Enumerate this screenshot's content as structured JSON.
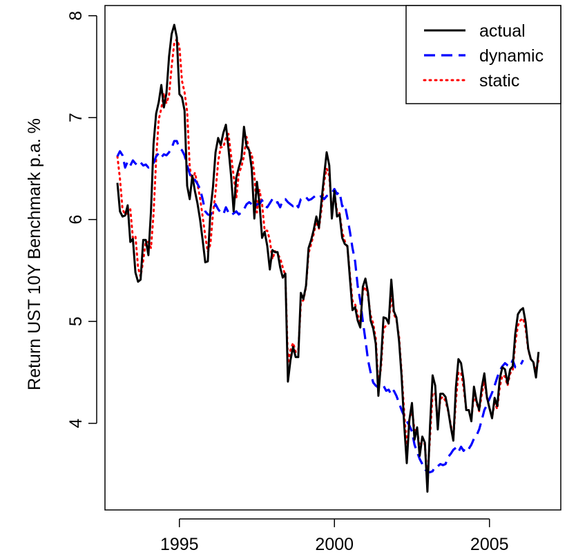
{
  "chart_data": {
    "type": "line",
    "title": "",
    "xlabel": "",
    "ylabel": "Return UST 10Y Benchmark p.a. %",
    "xlim": [
      1992.6,
      2007.3
    ],
    "ylim": [
      3.15,
      8.1
    ],
    "x_ticks": [
      1995,
      2000,
      2005
    ],
    "y_ticks": [
      4,
      5,
      6,
      7,
      8
    ],
    "grid": false,
    "legend_position": "top-right",
    "x_start": 1993.0,
    "x_step": 0.0833333,
    "series": [
      {
        "name": "actual",
        "color": "#000000",
        "dash": "solid",
        "values": [
          6.36,
          6.08,
          6.03,
          6.04,
          6.14,
          5.78,
          5.81,
          5.48,
          5.39,
          5.41,
          5.8,
          5.8,
          5.65,
          6.08,
          6.74,
          7.04,
          7.15,
          7.32,
          7.1,
          7.24,
          7.6,
          7.82,
          7.91,
          7.79,
          7.23,
          7.2,
          7.07,
          6.33,
          6.2,
          6.43,
          6.28,
          6.16,
          6.0,
          5.8,
          5.58,
          5.59,
          6.09,
          6.32,
          6.66,
          6.8,
          6.73,
          6.85,
          6.93,
          6.7,
          6.43,
          6.08,
          6.41,
          6.51,
          6.6,
          6.91,
          6.72,
          6.68,
          6.5,
          6.01,
          6.37,
          6.16,
          5.82,
          5.88,
          5.74,
          5.51,
          5.7,
          5.68,
          5.68,
          5.53,
          5.43,
          5.47,
          4.41,
          4.62,
          4.75,
          4.65,
          4.65,
          5.28,
          5.22,
          5.35,
          5.72,
          5.8,
          5.9,
          6.03,
          5.92,
          6.18,
          6.43,
          6.66,
          6.53,
          6.01,
          6.28,
          6.03,
          6.05,
          5.82,
          5.76,
          5.74,
          5.42,
          5.11,
          5.14,
          5.01,
          4.94,
          5.34,
          5.42,
          5.28,
          5.01,
          4.93,
          4.78,
          4.27,
          4.6,
          5.04,
          5.03,
          4.98,
          5.41,
          5.1,
          5.04,
          4.81,
          4.46,
          3.98,
          3.61,
          4.03,
          4.2,
          3.84,
          3.96,
          3.68,
          3.87,
          3.81,
          3.33,
          3.98,
          4.47,
          4.37,
          3.94,
          4.29,
          4.29,
          4.26,
          4.13,
          3.97,
          3.83,
          4.35,
          4.63,
          4.59,
          4.42,
          4.13,
          4.13,
          4.02,
          4.36,
          4.22,
          4.13,
          4.35,
          4.49,
          4.26,
          4.15,
          4.05,
          4.25,
          4.17,
          4.44,
          4.55,
          4.53,
          4.39,
          4.53,
          4.56,
          4.88,
          5.07,
          5.11,
          5.13,
          4.99,
          4.73,
          4.63,
          4.6,
          4.45,
          4.7
        ]
      },
      {
        "name": "dynamic",
        "color": "#0000ff",
        "dash": "dashed",
        "values": [
          6.62,
          6.67,
          6.63,
          6.51,
          6.57,
          6.53,
          6.58,
          6.55,
          6.53,
          6.56,
          6.53,
          6.54,
          6.51,
          6.52,
          6.55,
          6.62,
          6.65,
          6.61,
          6.64,
          6.63,
          6.66,
          6.7,
          6.77,
          6.77,
          6.7,
          6.68,
          6.63,
          6.53,
          6.45,
          6.38,
          6.39,
          6.35,
          6.3,
          6.2,
          6.08,
          6.05,
          6.04,
          6.1,
          6.15,
          6.1,
          6.07,
          6.05,
          6.12,
          6.07,
          6.04,
          6.06,
          6.08,
          6.05,
          6.07,
          6.1,
          6.15,
          6.17,
          6.15,
          6.12,
          6.15,
          6.15,
          6.19,
          6.13,
          6.12,
          6.16,
          6.2,
          6.16,
          6.17,
          6.12,
          6.19,
          6.2,
          6.17,
          6.15,
          6.13,
          6.16,
          6.12,
          6.2,
          6.2,
          6.22,
          6.19,
          6.2,
          6.22,
          6.24,
          6.22,
          6.23,
          6.2,
          6.23,
          6.25,
          6.26,
          6.3,
          6.25,
          6.27,
          6.13,
          6.15,
          6.02,
          5.88,
          5.72,
          5.59,
          5.35,
          5.2,
          5.0,
          4.82,
          4.62,
          4.5,
          4.4,
          4.37,
          4.35,
          4.37,
          4.37,
          4.32,
          4.33,
          4.28,
          4.32,
          4.27,
          4.2,
          4.13,
          4.07,
          4.02,
          3.98,
          3.92,
          3.79,
          3.72,
          3.65,
          3.6,
          3.55,
          3.52,
          3.52,
          3.53,
          3.58,
          3.58,
          3.6,
          3.59,
          3.6,
          3.67,
          3.7,
          3.74,
          3.76,
          3.72,
          3.77,
          3.73,
          3.77,
          3.75,
          3.79,
          3.85,
          3.88,
          3.94,
          4.03,
          4.13,
          4.18,
          4.24,
          4.3,
          4.37,
          4.45,
          4.52,
          4.56,
          4.59,
          4.57,
          4.56,
          4.62,
          4.55,
          4.55,
          4.57,
          4.62
        ]
      },
      {
        "name": "static",
        "color": "#ff0000",
        "dash": "dotted",
        "values": [
          6.62,
          6.4,
          6.1,
          6.05,
          6.06,
          6.1,
          5.82,
          5.84,
          5.53,
          5.44,
          5.6,
          5.78,
          5.78,
          5.72,
          6.05,
          6.59,
          6.98,
          7.09,
          7.24,
          7.14,
          7.22,
          7.5,
          7.73,
          7.77,
          7.7,
          7.36,
          7.25,
          7.06,
          6.52,
          6.36,
          6.46,
          6.35,
          6.21,
          6.03,
          5.84,
          5.68,
          5.76,
          6.06,
          6.27,
          6.57,
          6.71,
          6.71,
          6.8,
          6.84,
          6.63,
          6.43,
          6.21,
          6.45,
          6.52,
          6.62,
          6.81,
          6.66,
          6.65,
          6.44,
          6.07,
          6.29,
          6.15,
          5.89,
          5.89,
          5.8,
          5.61,
          5.69,
          5.66,
          5.62,
          5.53,
          5.45,
          4.59,
          4.72,
          4.79,
          4.7,
          4.71,
          5.18,
          5.21,
          5.34,
          5.67,
          5.76,
          5.86,
          5.98,
          5.91,
          6.1,
          6.37,
          6.5,
          6.43,
          6.08,
          6.26,
          6.08,
          6.06,
          5.88,
          5.79,
          5.73,
          5.46,
          5.2,
          5.17,
          5.06,
          5.0,
          5.3,
          5.34,
          5.25,
          5.06,
          4.98,
          4.83,
          4.38,
          4.54,
          4.93,
          4.96,
          4.98,
          5.26,
          5.07,
          5.02,
          4.85,
          4.5,
          4.1,
          3.76,
          4.03,
          4.14,
          3.93,
          3.94,
          3.75,
          3.85,
          3.79,
          3.44,
          3.87,
          4.3,
          4.29,
          4.0,
          4.24,
          4.26,
          4.22,
          4.12,
          3.99,
          3.85,
          4.22,
          4.5,
          4.5,
          4.35,
          4.14,
          4.13,
          4.04,
          4.28,
          4.2,
          4.12,
          4.28,
          4.42,
          4.25,
          4.15,
          4.06,
          4.2,
          4.14,
          4.36,
          4.47,
          4.46,
          4.37,
          4.49,
          4.52,
          4.79,
          4.96,
          5.01,
          5.03,
          4.93,
          4.72,
          4.63,
          4.6,
          4.52,
          4.62
        ]
      }
    ]
  }
}
